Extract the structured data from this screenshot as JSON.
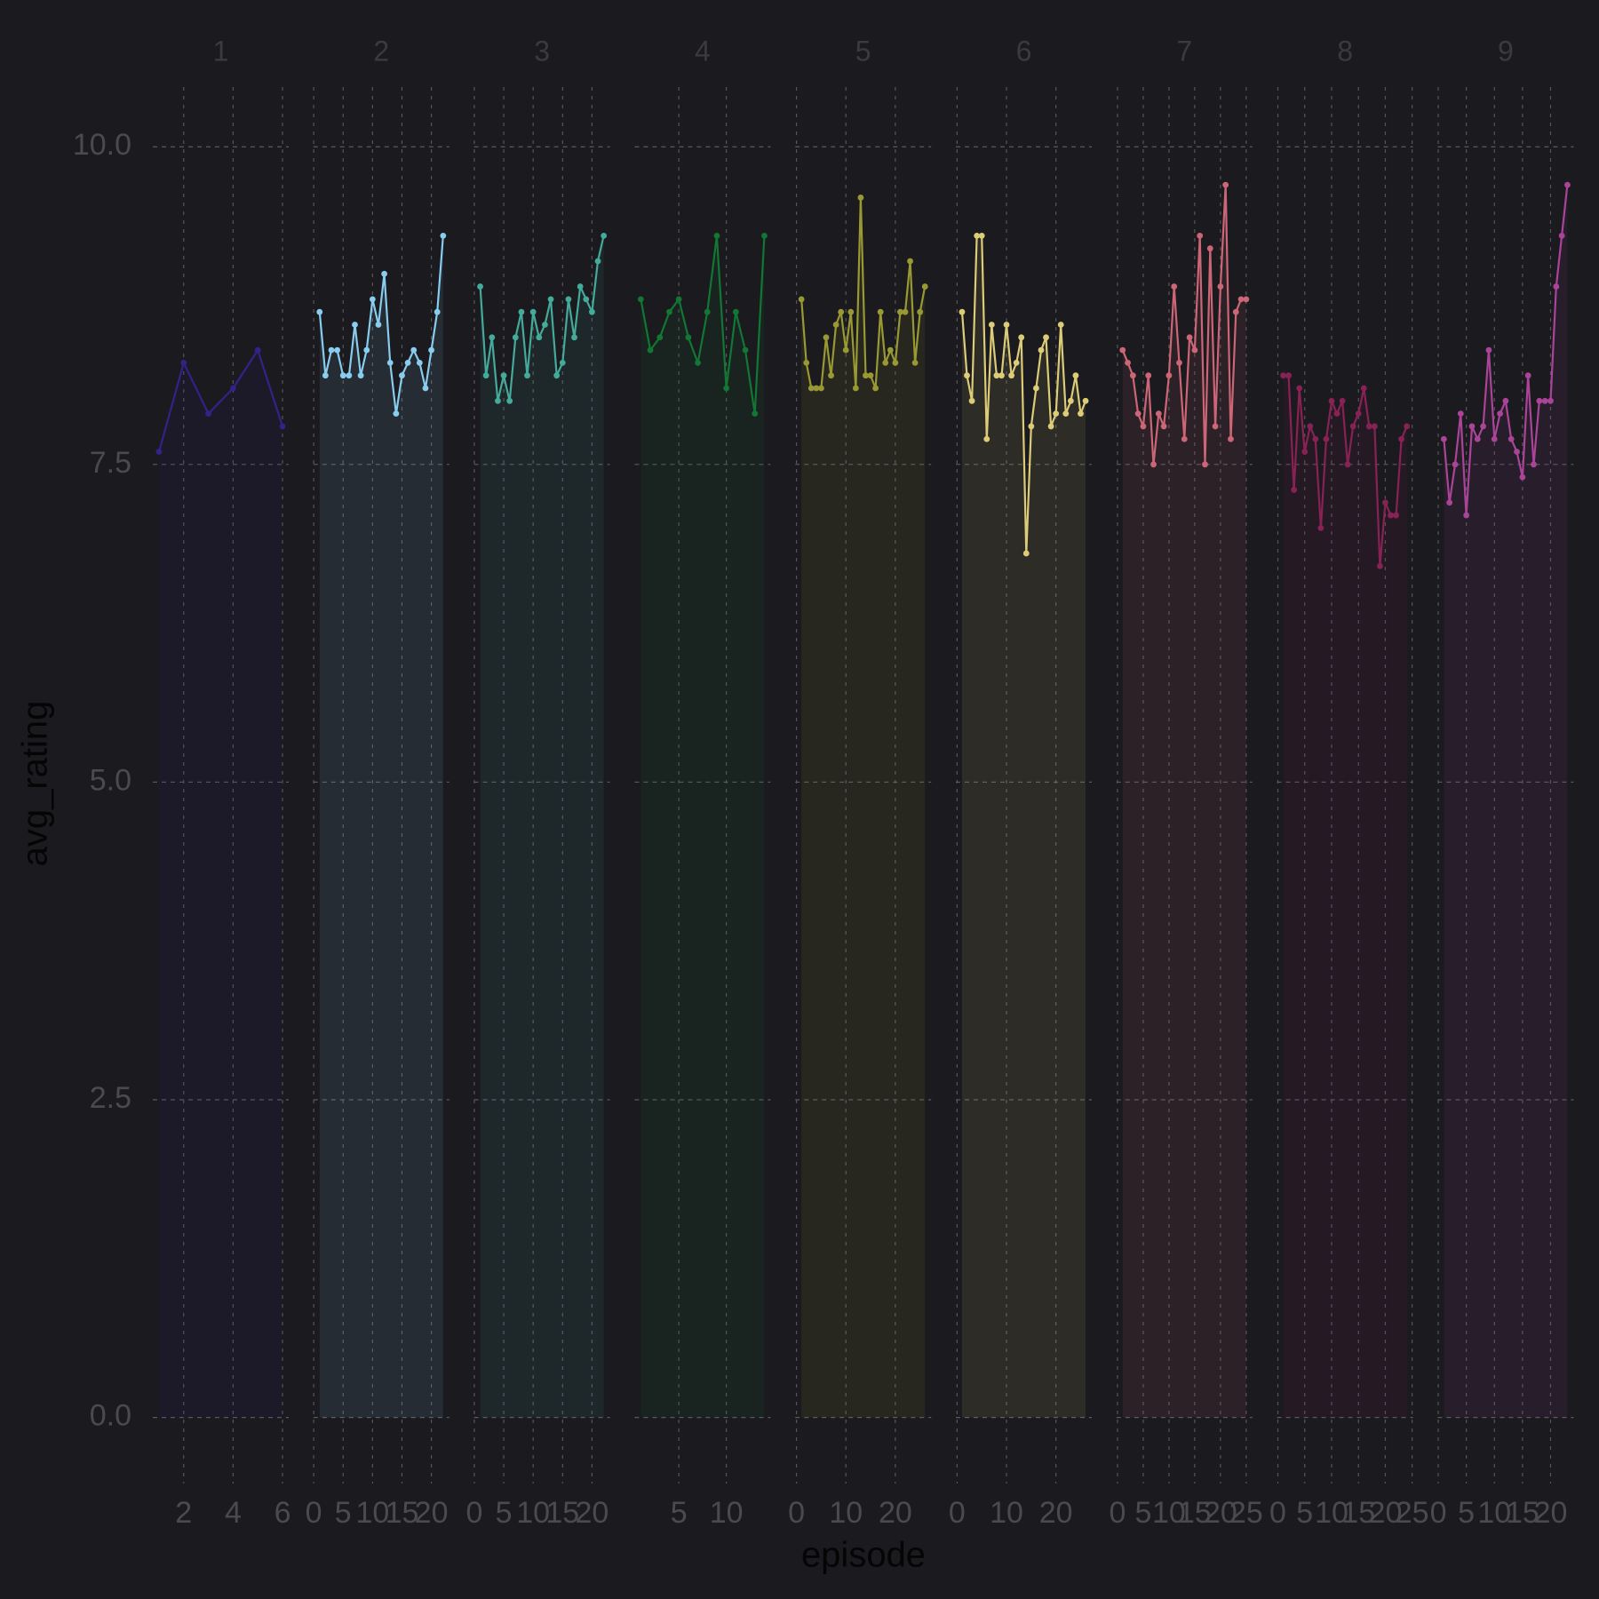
{
  "chart_data": {
    "type": "line",
    "xlabel": "episode",
    "ylabel": "avg_rating",
    "ylim": [
      -0.52,
      10.47
    ],
    "yticks": [
      {
        "value": 0,
        "label": "0.0"
      },
      2.5,
      {
        "value": 5,
        "label": "5.0"
      },
      7.5,
      {
        "value": 10,
        "label": "10.0"
      }
    ],
    "grid": true,
    "facets": [
      {
        "name": "1",
        "color": "#332288",
        "xlim": [
          0.75,
          6.25
        ],
        "xticks": [
          2,
          4,
          6
        ],
        "x": [
          1,
          2,
          3,
          4,
          5,
          6
        ],
        "values": [
          7.6,
          8.3,
          7.9,
          8.1,
          8.4,
          7.8
        ]
      },
      {
        "name": "2",
        "color": "#88ccee",
        "xlim": [
          -0.05,
          23.05
        ],
        "xticks": [
          0,
          5,
          10,
          15,
          20
        ],
        "x": [
          1,
          2,
          3,
          4,
          5,
          6,
          7,
          8,
          9,
          10,
          11,
          12,
          13,
          14,
          15,
          16,
          17,
          18,
          19,
          20,
          21,
          22
        ],
        "values": [
          8.7,
          8.2,
          8.4,
          8.4,
          8.2,
          8.2,
          8.6,
          8.2,
          8.4,
          8.8,
          8.6,
          9.0,
          8.3,
          7.9,
          8.2,
          8.3,
          8.4,
          8.3,
          8.1,
          8.4,
          8.7,
          9.3
        ]
      },
      {
        "name": "3",
        "color": "#44aa99",
        "xlim": [
          -0.05,
          23.05
        ],
        "xticks": [
          0,
          5,
          10,
          15,
          20
        ],
        "x": [
          1,
          2,
          3,
          4,
          5,
          6,
          7,
          8,
          9,
          10,
          11,
          12,
          13,
          14,
          15,
          16,
          17,
          18,
          19,
          20,
          21,
          22
        ],
        "values": [
          8.9,
          8.2,
          8.5,
          8.0,
          8.2,
          8.0,
          8.5,
          8.7,
          8.2,
          8.7,
          8.5,
          8.6,
          8.8,
          8.2,
          8.3,
          8.8,
          8.5,
          8.9,
          8.8,
          8.7,
          9.1,
          9.3
        ]
      },
      {
        "name": "4",
        "color": "#117733",
        "xlim": [
          0.35,
          14.65
        ],
        "xticks": [
          5,
          10
        ],
        "x": [
          1,
          2,
          3,
          4,
          5,
          6,
          7,
          8,
          9,
          10,
          11,
          12,
          13,
          14
        ],
        "values": [
          8.8,
          8.4,
          8.5,
          8.7,
          8.8,
          8.5,
          8.3,
          8.7,
          9.3,
          8.1,
          8.7,
          8.4,
          7.9,
          9.3
        ]
      },
      {
        "name": "5",
        "color": "#999933",
        "xlim": [
          -0.25,
          27.25
        ],
        "xticks": [
          0,
          10,
          20
        ],
        "x": [
          1,
          2,
          3,
          4,
          5,
          6,
          7,
          8,
          9,
          10,
          11,
          12,
          13,
          14,
          15,
          16,
          17,
          18,
          19,
          20,
          21,
          22,
          23,
          24,
          25,
          26
        ],
        "values": [
          8.8,
          8.3,
          8.1,
          8.1,
          8.1,
          8.5,
          8.2,
          8.6,
          8.7,
          8.4,
          8.7,
          8.1,
          9.6,
          8.2,
          8.2,
          8.1,
          8.7,
          8.3,
          8.4,
          8.3,
          8.7,
          8.7,
          9.1,
          8.3,
          8.7,
          8.9
        ]
      },
      {
        "name": "6",
        "color": "#ddcc77",
        "xlim": [
          -0.25,
          27.25
        ],
        "xticks": [
          0,
          10,
          20
        ],
        "x": [
          1,
          2,
          3,
          4,
          5,
          6,
          7,
          8,
          9,
          10,
          11,
          12,
          13,
          14,
          15,
          16,
          17,
          18,
          19,
          20,
          21,
          22,
          23,
          24,
          25,
          26
        ],
        "values": [
          8.7,
          8.2,
          8.0,
          9.3,
          9.3,
          7.7,
          8.6,
          8.2,
          8.2,
          8.6,
          8.2,
          8.3,
          8.5,
          6.8,
          7.8,
          8.1,
          8.4,
          8.5,
          7.8,
          7.9,
          8.6,
          7.9,
          8.0,
          8.2,
          7.9,
          8.0
        ]
      },
      {
        "name": "7",
        "color": "#cc6677",
        "xlim": [
          -0.2,
          26.2
        ],
        "xticks": [
          0,
          5,
          10,
          15,
          20,
          25
        ],
        "x": [
          1,
          2,
          3,
          4,
          5,
          6,
          7,
          8,
          9,
          10,
          11,
          12,
          13,
          14,
          15,
          16,
          17,
          18,
          19,
          20,
          21,
          22,
          23,
          24,
          25
        ],
        "values": [
          8.4,
          8.3,
          8.2,
          7.9,
          7.8,
          8.2,
          7.5,
          7.9,
          7.8,
          8.2,
          8.9,
          8.3,
          7.7,
          8.5,
          8.4,
          9.3,
          7.5,
          9.2,
          7.8,
          8.9,
          9.7,
          7.7,
          8.7,
          8.8,
          8.8
        ]
      },
      {
        "name": "8",
        "color": "#882255",
        "xlim": [
          -0.15,
          25.15
        ],
        "xticks": [
          0,
          5,
          10,
          15,
          20,
          25
        ],
        "x": [
          1,
          2,
          3,
          4,
          5,
          6,
          7,
          8,
          9,
          10,
          11,
          12,
          13,
          14,
          15,
          16,
          17,
          18,
          19,
          20,
          21,
          22,
          23,
          24
        ],
        "values": [
          8.2,
          8.2,
          7.3,
          8.1,
          7.6,
          7.8,
          7.7,
          7.0,
          7.7,
          8.0,
          7.9,
          8.0,
          7.5,
          7.8,
          7.9,
          8.1,
          7.8,
          7.8,
          6.7,
          7.2,
          7.1,
          7.1,
          7.7,
          7.8
        ]
      },
      {
        "name": "9",
        "color": "#aa4499",
        "xlim": [
          -0.1,
          24.1
        ],
        "xticks": [
          0,
          5,
          10,
          15,
          20
        ],
        "x": [
          1,
          2,
          3,
          4,
          5,
          6,
          7,
          8,
          9,
          10,
          11,
          12,
          13,
          14,
          15,
          16,
          17,
          18,
          19,
          20,
          21,
          22,
          23
        ],
        "values": [
          7.7,
          7.2,
          7.5,
          7.9,
          7.1,
          7.8,
          7.7,
          7.8,
          8.4,
          7.7,
          7.9,
          8.0,
          7.7,
          7.6,
          7.4,
          8.2,
          7.5,
          8.0,
          8.0,
          8.0,
          8.9,
          9.3,
          9.7
        ]
      }
    ]
  }
}
